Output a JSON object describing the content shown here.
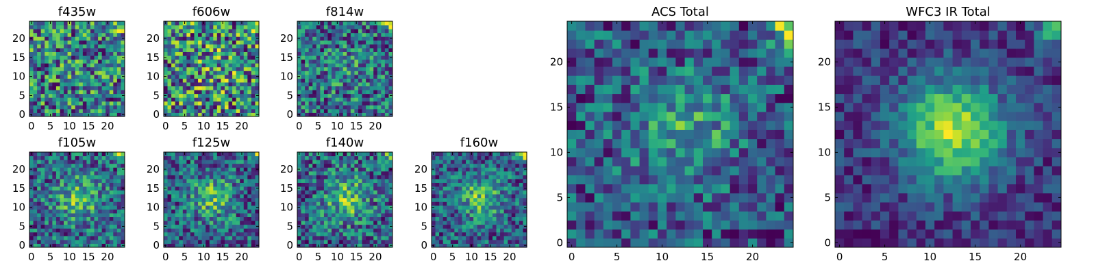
{
  "chart_data": [
    {
      "type": "heatmap",
      "title": "f435w",
      "grid": false,
      "x_ticks": [
        "0",
        "5",
        "10",
        "15",
        "20"
      ],
      "y_ticks": [
        "0",
        "5",
        "10",
        "15",
        "20"
      ],
      "xlim": [
        0,
        25
      ],
      "ylim": [
        0,
        25
      ],
      "colormap": "viridis",
      "seed": 11,
      "peak": 0.05,
      "noise": 1.0
    },
    {
      "type": "heatmap",
      "title": "f606w",
      "grid": false,
      "x_ticks": [
        "0",
        "5",
        "10",
        "15",
        "20"
      ],
      "y_ticks": [
        "0",
        "5",
        "10",
        "15",
        "20"
      ],
      "xlim": [
        0,
        25
      ],
      "ylim": [
        0,
        25
      ],
      "colormap": "viridis",
      "seed": 23,
      "peak": 0.1,
      "noise": 1.0
    },
    {
      "type": "heatmap",
      "title": "f814w",
      "grid": false,
      "x_ticks": [
        "0",
        "5",
        "10",
        "15",
        "20"
      ],
      "y_ticks": [
        "0",
        "5",
        "10",
        "15",
        "20"
      ],
      "xlim": [
        0,
        25
      ],
      "ylim": [
        0,
        25
      ],
      "colormap": "viridis",
      "seed": 37,
      "peak": 0.15,
      "noise": 1.0
    },
    {
      "type": "heatmap",
      "title": "f105w",
      "grid": false,
      "x_ticks": [
        "0",
        "5",
        "10",
        "15",
        "20"
      ],
      "y_ticks": [
        "0",
        "5",
        "10",
        "15",
        "20"
      ],
      "xlim": [
        0,
        25
      ],
      "ylim": [
        0,
        25
      ],
      "colormap": "viridis",
      "seed": 41,
      "peak": 0.45,
      "noise": 0.8
    },
    {
      "type": "heatmap",
      "title": "f125w",
      "grid": false,
      "x_ticks": [
        "0",
        "5",
        "10",
        "15",
        "20"
      ],
      "y_ticks": [
        "0",
        "5",
        "10",
        "15",
        "20"
      ],
      "xlim": [
        0,
        25
      ],
      "ylim": [
        0,
        25
      ],
      "colormap": "viridis",
      "seed": 53,
      "peak": 0.45,
      "noise": 0.8
    },
    {
      "type": "heatmap",
      "title": "f140w",
      "grid": false,
      "x_ticks": [
        "0",
        "5",
        "10",
        "15",
        "20"
      ],
      "y_ticks": [
        "0",
        "5",
        "10",
        "15",
        "20"
      ],
      "xlim": [
        0,
        25
      ],
      "ylim": [
        0,
        25
      ],
      "colormap": "viridis",
      "seed": 67,
      "peak": 0.45,
      "noise": 0.8
    },
    {
      "type": "heatmap",
      "title": "f160w",
      "grid": false,
      "x_ticks": [
        "0",
        "5",
        "10",
        "15",
        "20"
      ],
      "y_ticks": [
        "0",
        "5",
        "10",
        "15",
        "20"
      ],
      "xlim": [
        0,
        25
      ],
      "ylim": [
        0,
        25
      ],
      "colormap": "viridis",
      "seed": 71,
      "peak": 0.5,
      "noise": 0.75
    },
    {
      "type": "heatmap",
      "title": "ACS Total",
      "grid": false,
      "x_ticks": [
        "0",
        "5",
        "10",
        "15",
        "20"
      ],
      "y_ticks": [
        "0",
        "5",
        "10",
        "15",
        "20"
      ],
      "xlim": [
        0,
        25
      ],
      "ylim": [
        0,
        25
      ],
      "colormap": "viridis",
      "seed": 83,
      "peak": 0.3,
      "noise": 0.55
    },
    {
      "type": "heatmap",
      "title": "WFC3 IR Total",
      "grid": false,
      "x_ticks": [
        "0",
        "5",
        "10",
        "15",
        "20"
      ],
      "y_ticks": [
        "0",
        "5",
        "10",
        "15",
        "20"
      ],
      "xlim": [
        0,
        25
      ],
      "ylim": [
        0,
        25
      ],
      "colormap": "viridis",
      "seed": 97,
      "peak": 0.75,
      "noise": 0.35
    }
  ]
}
